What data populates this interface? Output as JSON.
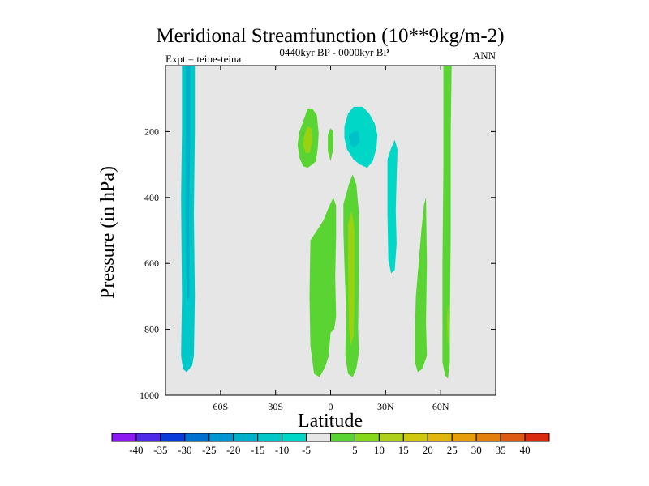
{
  "chart_data": {
    "type": "contour",
    "title": "Meridional Streamfunction (10**9kg/m-2)",
    "subtitle": "0440kyr BP - 0000kyr BP",
    "left_label": "Expt = teioe-teina",
    "right_label": "ANN",
    "xlabel": "Latitude",
    "ylabel": "Pressure (in hPa)",
    "xlim": [
      -90,
      90
    ],
    "ylim": [
      1000,
      0
    ],
    "x_ticks": [
      {
        "value": -60,
        "label": "60S"
      },
      {
        "value": -30,
        "label": "30S"
      },
      {
        "value": 0,
        "label": "0"
      },
      {
        "value": 30,
        "label": "30N"
      },
      {
        "value": 60,
        "label": "60N"
      }
    ],
    "y_ticks": [
      {
        "value": 200,
        "label": "200"
      },
      {
        "value": 400,
        "label": "400"
      },
      {
        "value": 600,
        "label": "600"
      },
      {
        "value": 800,
        "label": "800"
      },
      {
        "value": 1000,
        "label": "1000"
      }
    ],
    "background_color": "#e6e6e6",
    "contour_regions": [
      {
        "name": "south-polar-negative-cell",
        "level": -10,
        "color": "#00c8c8",
        "points": [
          [
            -81,
            0
          ],
          [
            -74,
            0
          ],
          [
            -74,
            200
          ],
          [
            -74.5,
            450
          ],
          [
            -74,
            700
          ],
          [
            -74.5,
            880
          ],
          [
            -75.5,
            910
          ],
          [
            -78.5,
            930
          ],
          [
            -80.5,
            920
          ],
          [
            -81.5,
            880
          ],
          [
            -81,
            700
          ],
          [
            -81.5,
            400
          ],
          [
            -81,
            200
          ]
        ]
      },
      {
        "name": "south-polar-inner-core",
        "level": -15,
        "color": "#00b0c8",
        "points": [
          [
            -79,
            0
          ],
          [
            -76.5,
            0
          ],
          [
            -76.5,
            200
          ],
          [
            -77,
            450
          ],
          [
            -77,
            700
          ],
          [
            -78.5,
            720
          ],
          [
            -79,
            450
          ]
        ]
      },
      {
        "name": "upper-tropical-positive-left",
        "level": 5,
        "color": "#5ad432",
        "points": [
          [
            -17,
            200
          ],
          [
            -15,
            170
          ],
          [
            -12.5,
            130
          ],
          [
            -10,
            130
          ],
          [
            -7.5,
            150
          ],
          [
            -6.5,
            205
          ],
          [
            -7,
            250
          ],
          [
            -8,
            290
          ],
          [
            -10,
            300
          ],
          [
            -12.5,
            310
          ],
          [
            -15,
            305
          ],
          [
            -17,
            280
          ],
          [
            -18,
            240
          ]
        ]
      },
      {
        "name": "upper-tropical-positive-left-core",
        "level": 10,
        "color": "#9ad211",
        "points": [
          [
            -14.5,
            215
          ],
          [
            -12.5,
            185
          ],
          [
            -10.5,
            190
          ],
          [
            -10,
            230
          ],
          [
            -11.5,
            265
          ],
          [
            -13.5,
            265
          ],
          [
            -15,
            240
          ]
        ]
      },
      {
        "name": "equatorial-thin-positive",
        "level": 5,
        "color": "#5ad432",
        "points": [
          [
            -1.5,
            210
          ],
          [
            0,
            190
          ],
          [
            1.5,
            200
          ],
          [
            1.5,
            250
          ],
          [
            0,
            290
          ],
          [
            -1.5,
            260
          ]
        ]
      },
      {
        "name": "upper-tropical-negative-right",
        "level": -5,
        "color": "#00d7c7",
        "points": [
          [
            7.5,
            185
          ],
          [
            9.5,
            145
          ],
          [
            12.5,
            125
          ],
          [
            17.5,
            125
          ],
          [
            21,
            145
          ],
          [
            24,
            175
          ],
          [
            25.5,
            210
          ],
          [
            25,
            250
          ],
          [
            23,
            290
          ],
          [
            20,
            310
          ],
          [
            16,
            300
          ],
          [
            12.5,
            285
          ],
          [
            9,
            255
          ],
          [
            7.5,
            220
          ]
        ]
      },
      {
        "name": "upper-tropical-negative-right-core",
        "level": -10,
        "color": "#00c0c8",
        "points": [
          [
            10,
            215
          ],
          [
            12.5,
            200
          ],
          [
            15,
            200
          ],
          [
            16,
            230
          ],
          [
            13,
            250
          ],
          [
            11,
            240
          ]
        ]
      },
      {
        "name": "northern-subtropical-negative",
        "level": -5,
        "color": "#00d7c7",
        "points": [
          [
            31,
            285
          ],
          [
            33,
            250
          ],
          [
            35,
            225
          ],
          [
            36.5,
            255
          ],
          [
            36,
            340
          ],
          [
            35.5,
            440
          ],
          [
            36,
            540
          ],
          [
            35,
            620
          ],
          [
            33,
            630
          ],
          [
            31.5,
            590
          ],
          [
            31,
            450
          ]
        ]
      },
      {
        "name": "lower-tropical-positive-left",
        "level": 5,
        "color": "#5ad432",
        "points": [
          [
            -11,
            530
          ],
          [
            -8,
            505
          ],
          [
            -4,
            470
          ],
          [
            -1,
            430
          ],
          [
            1.5,
            400
          ],
          [
            3,
            425
          ],
          [
            3,
            510
          ],
          [
            2.5,
            640
          ],
          [
            3,
            760
          ],
          [
            2,
            800
          ],
          [
            0,
            810
          ],
          [
            -1,
            880
          ],
          [
            -3,
            915
          ],
          [
            -6,
            945
          ],
          [
            -9,
            935
          ],
          [
            -11,
            850
          ],
          [
            -11.5,
            700
          ]
        ]
      },
      {
        "name": "lower-tropical-positive-right",
        "level": 5,
        "color": "#5ad432",
        "points": [
          [
            7,
            420
          ],
          [
            10,
            360
          ],
          [
            12,
            330
          ],
          [
            14,
            360
          ],
          [
            15.5,
            450
          ],
          [
            15.5,
            600
          ],
          [
            15,
            800
          ],
          [
            15.5,
            870
          ],
          [
            14,
            920
          ],
          [
            12,
            945
          ],
          [
            9.5,
            935
          ],
          [
            8,
            880
          ],
          [
            8.5,
            750
          ],
          [
            7.5,
            600
          ],
          [
            7,
            500
          ]
        ]
      },
      {
        "name": "lower-tropical-positive-right-core",
        "level": 10,
        "color": "#9ad211",
        "points": [
          [
            9.5,
            480
          ],
          [
            11.5,
            440
          ],
          [
            13,
            500
          ],
          [
            13,
            700
          ],
          [
            12.5,
            820
          ],
          [
            11,
            850
          ],
          [
            10,
            800
          ],
          [
            9.5,
            600
          ]
        ]
      },
      {
        "name": "midlatitude-positive-strip",
        "level": 5,
        "color": "#5ad432",
        "points": [
          [
            46.5,
            700
          ],
          [
            48,
            600
          ],
          [
            49.5,
            500
          ],
          [
            51,
            420
          ],
          [
            52,
            400
          ],
          [
            52.5,
            600
          ],
          [
            52,
            780
          ],
          [
            52.5,
            880
          ],
          [
            50,
            920
          ],
          [
            47.5,
            930
          ],
          [
            46,
            900
          ],
          [
            46,
            800
          ]
        ]
      },
      {
        "name": "north-polar-positive-cell",
        "level": 5,
        "color": "#5ad432",
        "points": [
          [
            61.5,
            0
          ],
          [
            66,
            0
          ],
          [
            65.5,
            200
          ],
          [
            65.5,
            500
          ],
          [
            65,
            800
          ],
          [
            65,
            900
          ],
          [
            64,
            950
          ],
          [
            62.5,
            940
          ],
          [
            61,
            900
          ],
          [
            61,
            600
          ],
          [
            61.5,
            300
          ]
        ]
      },
      {
        "name": "north-polar-positive-core",
        "level": 10,
        "color": "#9ad211",
        "points": [
          [
            63.5,
            760
          ],
          [
            64,
            720
          ],
          [
            64.5,
            780
          ],
          [
            64,
            860
          ],
          [
            63.5,
            800
          ]
        ]
      }
    ],
    "colorbar": {
      "colors": [
        "#8b1bf0",
        "#4f2ae8",
        "#0a3ad9",
        "#0070d0",
        "#0096d3",
        "#00b0c8",
        "#00c8c8",
        "#00d7c7",
        "#e6e6e6",
        "#5ad432",
        "#86d81a",
        "#aed01a",
        "#cfc80e",
        "#e2b70c",
        "#e69f0b",
        "#e37f0b",
        "#dd5a14",
        "#d92b0f"
      ],
      "tick_labels": [
        "-40",
        "-35",
        "-30",
        "-25",
        "-20",
        "-15",
        "-10",
        "-5",
        "5",
        "10",
        "15",
        "20",
        "25",
        "30",
        "35",
        "40"
      ]
    }
  }
}
